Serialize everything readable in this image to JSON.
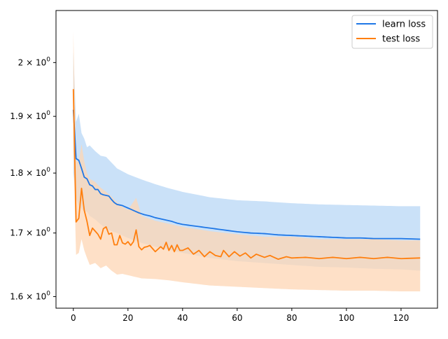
{
  "chart_data": {
    "type": "line",
    "title": "",
    "xlabel": "",
    "ylabel": "",
    "yscale": "log",
    "xlim": [
      -6.35,
      133.35
    ],
    "ylim": [
      1.5824,
      2.1018
    ],
    "x_ticks": [
      {
        "value": 0,
        "label": "0"
      },
      {
        "value": 20,
        "label": "20"
      },
      {
        "value": 40,
        "label": "40"
      },
      {
        "value": 60,
        "label": "60"
      },
      {
        "value": 80,
        "label": "80"
      },
      {
        "value": 100,
        "label": "100"
      },
      {
        "value": 120,
        "label": "120"
      }
    ],
    "y_ticks": [
      {
        "value": 1.6,
        "base": "1.6",
        "exp": "0"
      },
      {
        "value": 1.7,
        "base": "1.7",
        "exp": "0"
      },
      {
        "value": 1.8,
        "base": "1.8",
        "exp": "0"
      },
      {
        "value": 1.9,
        "base": "1.9",
        "exp": "0"
      },
      {
        "value": 2.0,
        "base": "2",
        "exp": "0"
      }
    ],
    "tick_times": "×",
    "tick_base": "10",
    "grid": false,
    "legend_position": "top-right",
    "series": [
      {
        "name": "learn loss",
        "color": "#1f77e6",
        "band_color": "#c7dff8",
        "mean_keypoints": [
          [
            0,
            1.912
          ],
          [
            1,
            1.825
          ],
          [
            2,
            1.822
          ],
          [
            3,
            1.808
          ],
          [
            4,
            1.793
          ],
          [
            5,
            1.79
          ],
          [
            6,
            1.78
          ],
          [
            7,
            1.778
          ],
          [
            8,
            1.772
          ],
          [
            9,
            1.772
          ],
          [
            10,
            1.765
          ],
          [
            11,
            1.763
          ],
          [
            12,
            1.762
          ],
          [
            13,
            1.761
          ],
          [
            14,
            1.755
          ],
          [
            15,
            1.75
          ],
          [
            16,
            1.747
          ],
          [
            17,
            1.746
          ],
          [
            18,
            1.745
          ],
          [
            20,
            1.741
          ],
          [
            22,
            1.737
          ],
          [
            24,
            1.733
          ],
          [
            26,
            1.73
          ],
          [
            28,
            1.728
          ],
          [
            30,
            1.725
          ],
          [
            32,
            1.723
          ],
          [
            34,
            1.721
          ],
          [
            36,
            1.719
          ],
          [
            38,
            1.716
          ],
          [
            40,
            1.714
          ],
          [
            45,
            1.711
          ],
          [
            50,
            1.708
          ],
          [
            55,
            1.705
          ],
          [
            60,
            1.702
          ],
          [
            65,
            1.7
          ],
          [
            70,
            1.699
          ],
          [
            75,
            1.697
          ],
          [
            80,
            1.696
          ],
          [
            85,
            1.695
          ],
          [
            90,
            1.694
          ],
          [
            95,
            1.693
          ],
          [
            100,
            1.692
          ],
          [
            105,
            1.692
          ],
          [
            110,
            1.691
          ],
          [
            115,
            1.691
          ],
          [
            120,
            1.691
          ],
          [
            127,
            1.69
          ]
        ],
        "upper_keypoints": [
          [
            0,
            2.02
          ],
          [
            1,
            1.89
          ],
          [
            2,
            1.905
          ],
          [
            3,
            1.87
          ],
          [
            4,
            1.86
          ],
          [
            5,
            1.845
          ],
          [
            6,
            1.848
          ],
          [
            8,
            1.838
          ],
          [
            10,
            1.83
          ],
          [
            12,
            1.828
          ],
          [
            14,
            1.818
          ],
          [
            16,
            1.808
          ],
          [
            18,
            1.803
          ],
          [
            20,
            1.798
          ],
          [
            25,
            1.789
          ],
          [
            30,
            1.781
          ],
          [
            35,
            1.774
          ],
          [
            40,
            1.768
          ],
          [
            50,
            1.759
          ],
          [
            60,
            1.754
          ],
          [
            70,
            1.752
          ],
          [
            80,
            1.749
          ],
          [
            90,
            1.747
          ],
          [
            100,
            1.746
          ],
          [
            110,
            1.745
          ],
          [
            120,
            1.744
          ],
          [
            127,
            1.744
          ]
        ],
        "lower_keypoints": [
          [
            0,
            1.8
          ],
          [
            1,
            1.757
          ],
          [
            2,
            1.745
          ],
          [
            3,
            1.74
          ],
          [
            4,
            1.735
          ],
          [
            5,
            1.735
          ],
          [
            6,
            1.728
          ],
          [
            8,
            1.722
          ],
          [
            10,
            1.714
          ],
          [
            12,
            1.707
          ],
          [
            14,
            1.703
          ],
          [
            16,
            1.7
          ],
          [
            18,
            1.696
          ],
          [
            20,
            1.692
          ],
          [
            25,
            1.684
          ],
          [
            30,
            1.678
          ],
          [
            35,
            1.673
          ],
          [
            40,
            1.668
          ],
          [
            50,
            1.66
          ],
          [
            60,
            1.655
          ],
          [
            70,
            1.652
          ],
          [
            80,
            1.649
          ],
          [
            90,
            1.646
          ],
          [
            100,
            1.645
          ],
          [
            110,
            1.643
          ],
          [
            120,
            1.642
          ],
          [
            127,
            1.64
          ]
        ]
      },
      {
        "name": "test loss",
        "color": "#ff7f0e",
        "band_color": "#fdd6b4",
        "mean_keypoints": [
          [
            0,
            1.95
          ],
          [
            1,
            1.718
          ],
          [
            2,
            1.724
          ],
          [
            3,
            1.774
          ],
          [
            4,
            1.737
          ],
          [
            5,
            1.719
          ],
          [
            6,
            1.696
          ],
          [
            7,
            1.708
          ],
          [
            8,
            1.703
          ],
          [
            9,
            1.698
          ],
          [
            10,
            1.69
          ],
          [
            11,
            1.707
          ],
          [
            12,
            1.71
          ],
          [
            13,
            1.698
          ],
          [
            14,
            1.7
          ],
          [
            15,
            1.681
          ],
          [
            16,
            1.681
          ],
          [
            17,
            1.696
          ],
          [
            18,
            1.684
          ],
          [
            19,
            1.682
          ],
          [
            20,
            1.686
          ],
          [
            21,
            1.68
          ],
          [
            22,
            1.686
          ],
          [
            23,
            1.705
          ],
          [
            24,
            1.678
          ],
          [
            25,
            1.673
          ],
          [
            26,
            1.677
          ],
          [
            27,
            1.678
          ],
          [
            28,
            1.68
          ],
          [
            29,
            1.675
          ],
          [
            30,
            1.67
          ],
          [
            32,
            1.678
          ],
          [
            33,
            1.674
          ],
          [
            34,
            1.685
          ],
          [
            35,
            1.672
          ],
          [
            36,
            1.68
          ],
          [
            37,
            1.67
          ],
          [
            38,
            1.681
          ],
          [
            39,
            1.672
          ],
          [
            40,
            1.672
          ],
          [
            42,
            1.676
          ],
          [
            44,
            1.666
          ],
          [
            46,
            1.672
          ],
          [
            48,
            1.662
          ],
          [
            50,
            1.67
          ],
          [
            52,
            1.664
          ],
          [
            54,
            1.662
          ],
          [
            55,
            1.672
          ],
          [
            57,
            1.662
          ],
          [
            59,
            1.67
          ],
          [
            61,
            1.663
          ],
          [
            63,
            1.668
          ],
          [
            65,
            1.66
          ],
          [
            67,
            1.666
          ],
          [
            70,
            1.661
          ],
          [
            72,
            1.664
          ],
          [
            75,
            1.658
          ],
          [
            78,
            1.662
          ],
          [
            80,
            1.66
          ],
          [
            85,
            1.661
          ],
          [
            90,
            1.659
          ],
          [
            95,
            1.661
          ],
          [
            100,
            1.659
          ],
          [
            105,
            1.661
          ],
          [
            110,
            1.659
          ],
          [
            115,
            1.661
          ],
          [
            120,
            1.659
          ],
          [
            127,
            1.66
          ]
        ],
        "upper_keypoints": [
          [
            0,
            2.06
          ],
          [
            1,
            1.82
          ],
          [
            2,
            1.82
          ],
          [
            3,
            1.85
          ],
          [
            4,
            1.82
          ],
          [
            5,
            1.8
          ],
          [
            6,
            1.79
          ],
          [
            8,
            1.785
          ],
          [
            10,
            1.775
          ],
          [
            12,
            1.768
          ],
          [
            14,
            1.76
          ],
          [
            16,
            1.75
          ],
          [
            18,
            1.743
          ],
          [
            20,
            1.738
          ],
          [
            23,
            1.758
          ],
          [
            25,
            1.728
          ],
          [
            30,
            1.72
          ],
          [
            35,
            1.715
          ],
          [
            40,
            1.71
          ],
          [
            50,
            1.703
          ],
          [
            60,
            1.698
          ],
          [
            70,
            1.694
          ],
          [
            80,
            1.694
          ],
          [
            90,
            1.69
          ],
          [
            100,
            1.69
          ],
          [
            110,
            1.69
          ],
          [
            120,
            1.688
          ],
          [
            127,
            1.688
          ]
        ],
        "lower_keypoints": [
          [
            0,
            1.84
          ],
          [
            1,
            1.665
          ],
          [
            2,
            1.668
          ],
          [
            3,
            1.69
          ],
          [
            4,
            1.672
          ],
          [
            5,
            1.66
          ],
          [
            6,
            1.649
          ],
          [
            8,
            1.652
          ],
          [
            10,
            1.644
          ],
          [
            12,
            1.648
          ],
          [
            14,
            1.64
          ],
          [
            16,
            1.634
          ],
          [
            18,
            1.635
          ],
          [
            20,
            1.633
          ],
          [
            25,
            1.628
          ],
          [
            30,
            1.627
          ],
          [
            35,
            1.625
          ],
          [
            40,
            1.622
          ],
          [
            50,
            1.617
          ],
          [
            60,
            1.615
          ],
          [
            70,
            1.613
          ],
          [
            80,
            1.611
          ],
          [
            90,
            1.61
          ],
          [
            100,
            1.609
          ],
          [
            110,
            1.609
          ],
          [
            120,
            1.608
          ],
          [
            127,
            1.608
          ]
        ]
      }
    ]
  }
}
